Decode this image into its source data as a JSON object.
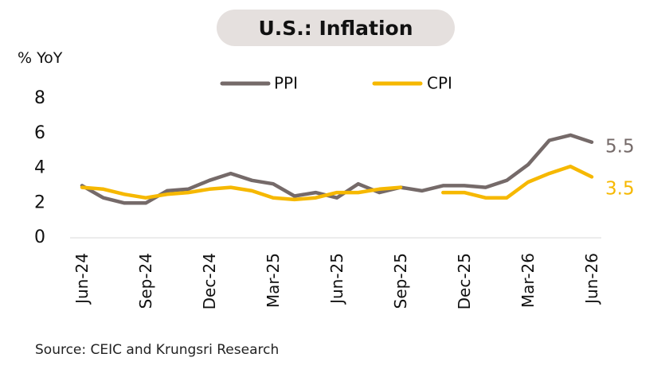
{
  "title": "U.S.: Inflation",
  "unit_label": "% YoY",
  "source": "Source: CEIC and Krungsri Research",
  "colors": {
    "ppi": "#756a69",
    "cpi": "#f6b800",
    "title_bg": "#e5e0de"
  },
  "chart_data": {
    "type": "line",
    "ylim": [
      0,
      8
    ],
    "yticks": [
      "0",
      "2",
      "4",
      "6",
      "8"
    ],
    "grid": false,
    "legend_position": "top",
    "x": [
      "Jun-24",
      "Jul-24",
      "Aug-24",
      "Sep-24",
      "Oct-24",
      "Nov-24",
      "Dec-24",
      "Jan-25",
      "Feb-25",
      "Mar-25",
      "Apr-25",
      "May-25",
      "Jun-25",
      "Jul-25",
      "Aug-25",
      "Sep-25",
      "Oct-25",
      "Nov-25",
      "Dec-25",
      "Jan-26",
      "Feb-26",
      "Mar-26",
      "Apr-26",
      "May-26",
      "Jun-26"
    ],
    "xtick_labels": [
      "Jun-24",
      "Sep-24",
      "Dec-24",
      "Mar-25",
      "Jun-25",
      "Sep-25",
      "Dec-25",
      "Mar-26",
      "Jun-26"
    ],
    "series": [
      {
        "name": "PPI",
        "values": [
          3.0,
          2.3,
          2.0,
          2.0,
          2.7,
          2.8,
          3.3,
          3.7,
          3.3,
          3.1,
          2.4,
          2.6,
          2.3,
          3.1,
          2.6,
          2.9,
          2.7,
          3.0,
          3.0,
          2.9,
          3.3,
          4.2,
          5.6,
          5.9,
          5.5
        ]
      },
      {
        "name": "CPI",
        "values": [
          2.9,
          2.8,
          2.5,
          2.3,
          2.5,
          2.6,
          2.8,
          2.9,
          2.7,
          2.3,
          2.2,
          2.3,
          2.6,
          2.6,
          2.8,
          2.9,
          null,
          2.6,
          2.6,
          2.3,
          2.3,
          3.2,
          3.7,
          4.1,
          3.5
        ]
      }
    ],
    "end_labels": [
      "5.5",
      "3.5"
    ]
  }
}
